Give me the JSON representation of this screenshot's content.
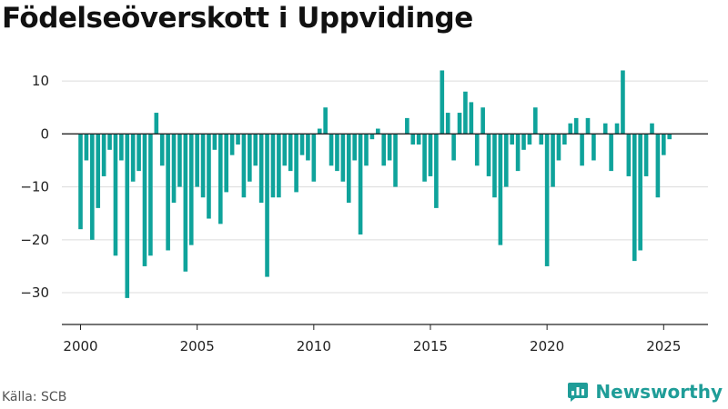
{
  "title": "Födelseöverskott i Uppvidinge",
  "source": "Källa: SCB",
  "brand": {
    "name": "Newsworthy",
    "icon": "newsworthy-logo-icon",
    "color": "#1f9d98"
  },
  "chart_data": {
    "type": "bar",
    "bar_color": "#0fa39b",
    "x_ticks": [
      "2000",
      "2005",
      "2010",
      "2015",
      "2020",
      "2025"
    ],
    "y_ticks": [
      10,
      0,
      -10,
      -20,
      -30
    ],
    "ylim": [
      -36,
      15
    ],
    "xlim": [
      1999.2,
      2026.9
    ],
    "grid": true,
    "bars": [
      {
        "x": 2000.0,
        "y": -18
      },
      {
        "x": 2000.25,
        "y": -5
      },
      {
        "x": 2000.5,
        "y": -20
      },
      {
        "x": 2000.75,
        "y": -14
      },
      {
        "x": 2001.0,
        "y": -8
      },
      {
        "x": 2001.25,
        "y": -3
      },
      {
        "x": 2001.5,
        "y": -23
      },
      {
        "x": 2001.75,
        "y": -5
      },
      {
        "x": 2002.0,
        "y": -31
      },
      {
        "x": 2002.25,
        "y": -9
      },
      {
        "x": 2002.5,
        "y": -7
      },
      {
        "x": 2002.75,
        "y": -25
      },
      {
        "x": 2003.0,
        "y": -23
      },
      {
        "x": 2003.25,
        "y": 4
      },
      {
        "x": 2003.5,
        "y": -6
      },
      {
        "x": 2003.75,
        "y": -22
      },
      {
        "x": 2004.0,
        "y": -13
      },
      {
        "x": 2004.25,
        "y": -10
      },
      {
        "x": 2004.5,
        "y": -26
      },
      {
        "x": 2004.75,
        "y": -21
      },
      {
        "x": 2005.0,
        "y": -10
      },
      {
        "x": 2005.25,
        "y": -12
      },
      {
        "x": 2005.5,
        "y": -16
      },
      {
        "x": 2005.75,
        "y": -3
      },
      {
        "x": 2006.0,
        "y": -17
      },
      {
        "x": 2006.25,
        "y": -11
      },
      {
        "x": 2006.5,
        "y": -4
      },
      {
        "x": 2006.75,
        "y": -2
      },
      {
        "x": 2007.0,
        "y": -12
      },
      {
        "x": 2007.25,
        "y": -9
      },
      {
        "x": 2007.5,
        "y": -6
      },
      {
        "x": 2007.75,
        "y": -13
      },
      {
        "x": 2008.0,
        "y": -27
      },
      {
        "x": 2008.25,
        "y": -12
      },
      {
        "x": 2008.5,
        "y": -12
      },
      {
        "x": 2008.75,
        "y": -6
      },
      {
        "x": 2009.0,
        "y": -7
      },
      {
        "x": 2009.25,
        "y": -11
      },
      {
        "x": 2009.5,
        "y": -4
      },
      {
        "x": 2009.75,
        "y": -5
      },
      {
        "x": 2010.0,
        "y": -9
      },
      {
        "x": 2010.25,
        "y": 1
      },
      {
        "x": 2010.5,
        "y": 5
      },
      {
        "x": 2010.75,
        "y": -6
      },
      {
        "x": 2011.0,
        "y": -7
      },
      {
        "x": 2011.25,
        "y": -9
      },
      {
        "x": 2011.5,
        "y": -13
      },
      {
        "x": 2011.75,
        "y": -5
      },
      {
        "x": 2012.0,
        "y": -19
      },
      {
        "x": 2012.25,
        "y": -6
      },
      {
        "x": 2012.5,
        "y": -1
      },
      {
        "x": 2012.75,
        "y": 1
      },
      {
        "x": 2013.0,
        "y": -6
      },
      {
        "x": 2013.25,
        "y": -5
      },
      {
        "x": 2013.5,
        "y": -10
      },
      {
        "x": 2013.75,
        "y": 0
      },
      {
        "x": 2014.0,
        "y": 3
      },
      {
        "x": 2014.25,
        "y": -2
      },
      {
        "x": 2014.5,
        "y": -2
      },
      {
        "x": 2014.75,
        "y": -9
      },
      {
        "x": 2015.0,
        "y": -8
      },
      {
        "x": 2015.25,
        "y": -14
      },
      {
        "x": 2015.5,
        "y": 12
      },
      {
        "x": 2015.75,
        "y": 4
      },
      {
        "x": 2016.0,
        "y": -5
      },
      {
        "x": 2016.25,
        "y": 4
      },
      {
        "x": 2016.5,
        "y": 8
      },
      {
        "x": 2016.75,
        "y": 6
      },
      {
        "x": 2017.0,
        "y": -6
      },
      {
        "x": 2017.25,
        "y": 5
      },
      {
        "x": 2017.5,
        "y": -8
      },
      {
        "x": 2017.75,
        "y": -12
      },
      {
        "x": 2018.0,
        "y": -21
      },
      {
        "x": 2018.25,
        "y": -10
      },
      {
        "x": 2018.5,
        "y": -2
      },
      {
        "x": 2018.75,
        "y": -7
      },
      {
        "x": 2019.0,
        "y": -3
      },
      {
        "x": 2019.25,
        "y": -2
      },
      {
        "x": 2019.5,
        "y": 5
      },
      {
        "x": 2019.75,
        "y": -2
      },
      {
        "x": 2020.0,
        "y": -25
      },
      {
        "x": 2020.25,
        "y": -10
      },
      {
        "x": 2020.5,
        "y": -5
      },
      {
        "x": 2020.75,
        "y": -2
      },
      {
        "x": 2021.0,
        "y": 2
      },
      {
        "x": 2021.25,
        "y": 3
      },
      {
        "x": 2021.5,
        "y": -6
      },
      {
        "x": 2021.75,
        "y": 3
      },
      {
        "x": 2022.0,
        "y": -5
      },
      {
        "x": 2022.25,
        "y": 0
      },
      {
        "x": 2022.5,
        "y": 2
      },
      {
        "x": 2022.75,
        "y": -7
      },
      {
        "x": 2023.0,
        "y": 2
      },
      {
        "x": 2023.25,
        "y": 12
      },
      {
        "x": 2023.5,
        "y": -8
      },
      {
        "x": 2023.75,
        "y": -24
      },
      {
        "x": 2024.0,
        "y": -22
      },
      {
        "x": 2024.25,
        "y": -8
      },
      {
        "x": 2024.5,
        "y": 2
      },
      {
        "x": 2024.75,
        "y": -12
      },
      {
        "x": 2025.0,
        "y": -4
      },
      {
        "x": 2025.25,
        "y": -1
      }
    ]
  }
}
